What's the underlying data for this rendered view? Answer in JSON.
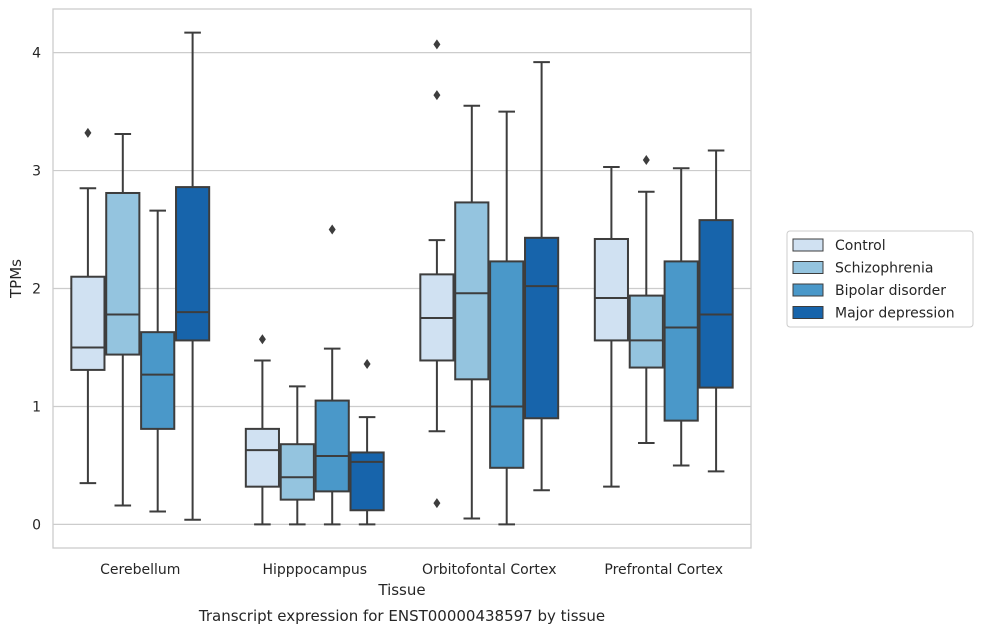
{
  "caption": "Transcript expression for ENST00000438597 by tissue",
  "chart_data": {
    "type": "box",
    "title": "",
    "xlabel": "Tissue",
    "ylabel": "TPMs",
    "ylim": [
      -0.2,
      4.37
    ],
    "yticks": [
      0,
      1,
      2,
      3,
      4
    ],
    "grid": "horizontal",
    "legend_position": "right",
    "categories": [
      "Cerebellum",
      "Hipppocampus",
      "Orbitofontal Cortex",
      "Prefrontal Cortex"
    ],
    "series": [
      {
        "name": "Control",
        "color": "#d0e1f2",
        "boxes": [
          {
            "whisker_low": 0.35,
            "q1": 1.31,
            "median": 1.5,
            "q3": 2.1,
            "whisker_high": 2.85,
            "outliers": [
              3.32
            ]
          },
          {
            "whisker_low": 0.0,
            "q1": 0.32,
            "median": 0.63,
            "q3": 0.81,
            "whisker_high": 1.39,
            "outliers": [
              1.57
            ]
          },
          {
            "whisker_low": 0.79,
            "q1": 1.39,
            "median": 1.75,
            "q3": 2.12,
            "whisker_high": 2.41,
            "outliers": [
              0.18,
              3.64,
              4.07
            ]
          },
          {
            "whisker_low": 0.32,
            "q1": 1.56,
            "median": 1.92,
            "q3": 2.42,
            "whisker_high": 3.03,
            "outliers": []
          }
        ]
      },
      {
        "name": "Schizophrenia",
        "color": "#94c4df",
        "boxes": [
          {
            "whisker_low": 0.16,
            "q1": 1.44,
            "median": 1.78,
            "q3": 2.81,
            "whisker_high": 3.31,
            "outliers": []
          },
          {
            "whisker_low": 0.0,
            "q1": 0.21,
            "median": 0.4,
            "q3": 0.68,
            "whisker_high": 1.17,
            "outliers": []
          },
          {
            "whisker_low": 0.05,
            "q1": 1.23,
            "median": 1.96,
            "q3": 2.73,
            "whisker_high": 3.55,
            "outliers": []
          },
          {
            "whisker_low": 0.69,
            "q1": 1.33,
            "median": 1.56,
            "q3": 1.94,
            "whisker_high": 2.82,
            "outliers": [
              3.09
            ]
          }
        ]
      },
      {
        "name": "Bipolar disorder",
        "color": "#4a98c9",
        "boxes": [
          {
            "whisker_low": 0.11,
            "q1": 0.81,
            "median": 1.27,
            "q3": 1.63,
            "whisker_high": 2.66,
            "outliers": []
          },
          {
            "whisker_low": 0.0,
            "q1": 0.28,
            "median": 0.58,
            "q3": 1.05,
            "whisker_high": 1.49,
            "outliers": [
              2.5
            ]
          },
          {
            "whisker_low": 0.0,
            "q1": 0.48,
            "median": 1.0,
            "q3": 2.23,
            "whisker_high": 3.5,
            "outliers": []
          },
          {
            "whisker_low": 0.5,
            "q1": 0.88,
            "median": 1.67,
            "q3": 2.23,
            "whisker_high": 3.02,
            "outliers": []
          }
        ]
      },
      {
        "name": "Major depression",
        "color": "#1764ab",
        "boxes": [
          {
            "whisker_low": 0.04,
            "q1": 1.56,
            "median": 1.8,
            "q3": 2.86,
            "whisker_high": 4.17,
            "outliers": []
          },
          {
            "whisker_low": 0.0,
            "q1": 0.12,
            "median": 0.53,
            "q3": 0.61,
            "whisker_high": 0.91,
            "outliers": [
              1.36
            ]
          },
          {
            "whisker_low": 0.29,
            "q1": 0.9,
            "median": 2.02,
            "q3": 2.43,
            "whisker_high": 3.92,
            "outliers": []
          },
          {
            "whisker_low": 0.45,
            "q1": 1.16,
            "median": 1.78,
            "q3": 2.58,
            "whisker_high": 3.17,
            "outliers": []
          }
        ]
      }
    ]
  }
}
